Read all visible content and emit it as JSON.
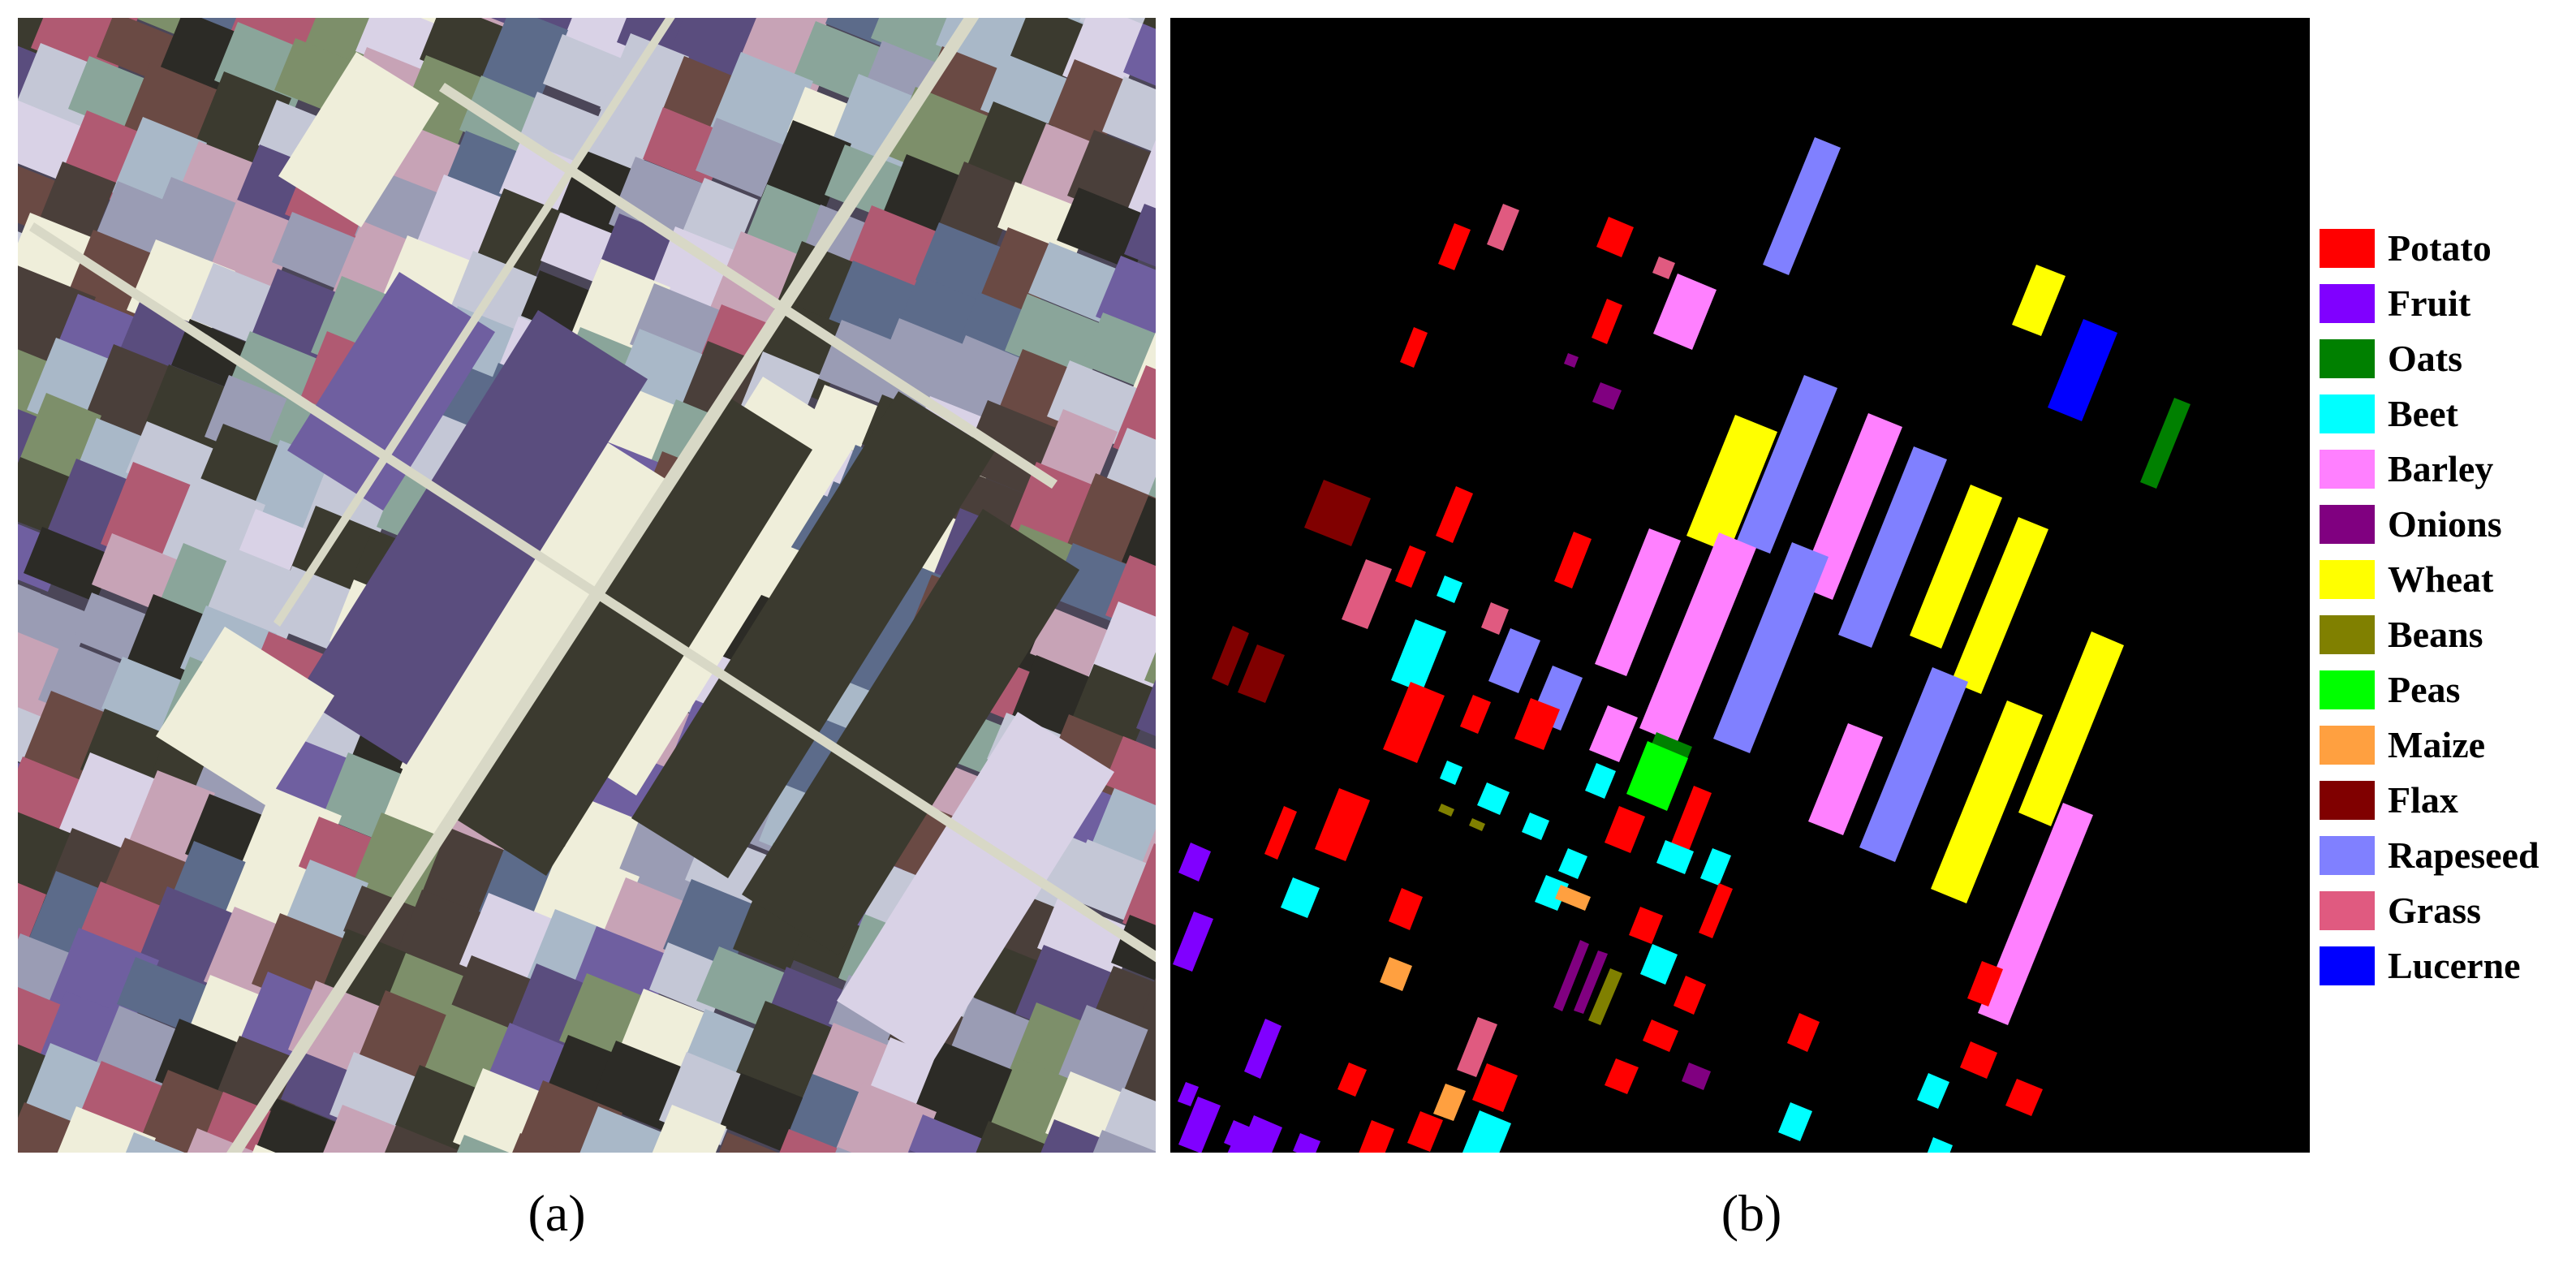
{
  "captions": {
    "a": "(a)",
    "b": "(b)"
  },
  "panel_a": {
    "background_color": "#4b4658",
    "palette": [
      "#5a4d7e",
      "#6f5fa0",
      "#4a3f3a",
      "#6a4a44",
      "#a9b8c8",
      "#c4c7d6",
      "#d9d2e6",
      "#8aa59a",
      "#7d8f6a",
      "#b05a72",
      "#efeeda",
      "#3b3a2f",
      "#2c2b26",
      "#9a9cb4",
      "#c7a3b6",
      "#5c6b8a"
    ]
  },
  "legend": {
    "items": [
      {
        "label": "Potato",
        "color": "#ff0000"
      },
      {
        "label": "Fruit",
        "color": "#8000ff"
      },
      {
        "label": "Oats",
        "color": "#008000"
      },
      {
        "label": "Beet",
        "color": "#00ffff"
      },
      {
        "label": "Barley",
        "color": "#ff80ff"
      },
      {
        "label": "Onions",
        "color": "#800080"
      },
      {
        "label": "Wheat",
        "color": "#ffff00"
      },
      {
        "label": "Beans",
        "color": "#808000"
      },
      {
        "label": "Peas",
        "color": "#00ff00"
      },
      {
        "label": "Maize",
        "color": "#ffa040"
      },
      {
        "label": "Flax",
        "color": "#800000"
      },
      {
        "label": "Rapeseed",
        "color": "#8080ff"
      },
      {
        "label": "Grass",
        "color": "#e05a80"
      },
      {
        "label": "Lucerne",
        "color": "#0000ff"
      }
    ]
  }
}
